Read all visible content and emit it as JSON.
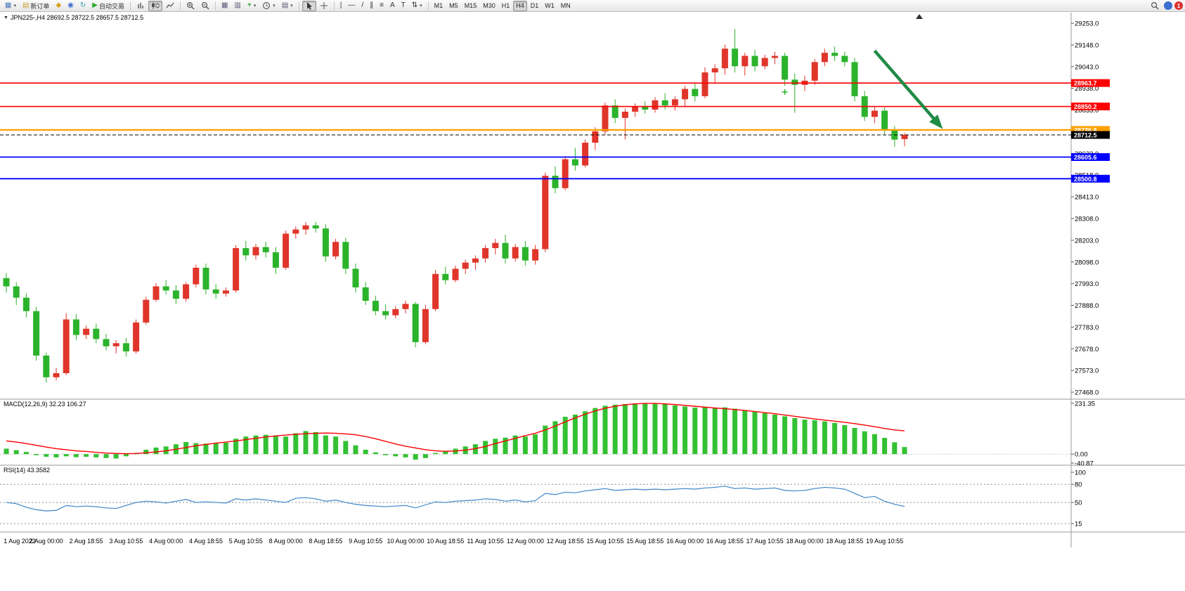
{
  "toolbar": {
    "new_order_label": "新订单",
    "auto_trading_label": "自动交易",
    "timeframes": [
      "M1",
      "M5",
      "M15",
      "M30",
      "H1",
      "H4",
      "D1",
      "W1",
      "MN"
    ],
    "active_timeframe": "H4",
    "badge_count": "1"
  },
  "chart": {
    "title": "JPN225-,H4 28692.5 28722.5 28657.5 28712.5",
    "symbol": "JPN225-",
    "period": "H4",
    "open": "28692.5",
    "high": "28722.5",
    "low": "28657.5",
    "close": "28712.5"
  },
  "chart_data": [
    {
      "type": "candlestick",
      "name": "JPN225- H4 main chart",
      "up_color": "#e0352b",
      "down_color": "#2bb32b",
      "ylim": [
        27441,
        29277
      ],
      "y_tick_labels": [
        "29253.0",
        "29148.0",
        "29043.0",
        "28938.0",
        "28833.0",
        "28728.0",
        "28623.0",
        "28518.0",
        "28413.0",
        "28308.0",
        "28203.0",
        "28098.0",
        "27993.0",
        "27888.0",
        "27783.0",
        "27678.0",
        "27573.0",
        "27468.0"
      ],
      "x_tick_step": 4,
      "x_tick_labels": [
        "1 Aug 2022",
        "2 Aug 00:00",
        "2 Aug 18:55",
        "3 Aug 10:55",
        "4 Aug 00:00",
        "4 Aug 18:55",
        "5 Aug 10:55",
        "8 Aug 00:00",
        "8 Aug 18:55",
        "9 Aug 10:55",
        "10 Aug 00:00",
        "10 Aug 18:55",
        "11 Aug 10:55",
        "12 Aug 00:00",
        "12 Aug 18:55",
        "15 Aug 10:55",
        "15 Aug 18:55",
        "16 Aug 00:00",
        "16 Aug 18:55",
        "17 Aug 10:55",
        "18 Aug 00:00",
        "18 Aug 18:55",
        "19 Aug 10:55"
      ],
      "ohlc": [
        [
          28020,
          28045,
          27950,
          27980
        ],
        [
          27980,
          28000,
          27890,
          27925
        ],
        [
          27925,
          27945,
          27830,
          27860
        ],
        [
          27860,
          27880,
          27620,
          27645
        ],
        [
          27645,
          27660,
          27515,
          27540
        ],
        [
          27540,
          27585,
          27525,
          27560
        ],
        [
          27560,
          27850,
          27550,
          27820
        ],
        [
          27820,
          27845,
          27720,
          27745
        ],
        [
          27745,
          27790,
          27725,
          27775
        ],
        [
          27775,
          27800,
          27705,
          27725
        ],
        [
          27725,
          27750,
          27670,
          27690
        ],
        [
          27690,
          27720,
          27655,
          27705
        ],
        [
          27705,
          27730,
          27640,
          27665
        ],
        [
          27665,
          27820,
          27655,
          27805
        ],
        [
          27805,
          27930,
          27795,
          27915
        ],
        [
          27915,
          27995,
          27905,
          27980
        ],
        [
          27980,
          28010,
          27940,
          27960
        ],
        [
          27960,
          27985,
          27895,
          27920
        ],
        [
          27920,
          28000,
          27905,
          27990
        ],
        [
          27990,
          28085,
          27975,
          28070
        ],
        [
          28070,
          28090,
          27940,
          27965
        ],
        [
          27965,
          27990,
          27920,
          27945
        ],
        [
          27945,
          27975,
          27930,
          27960
        ],
        [
          27960,
          28180,
          27950,
          28165
        ],
        [
          28165,
          28200,
          28105,
          28130
        ],
        [
          28130,
          28185,
          28110,
          28170
        ],
        [
          28170,
          28195,
          28120,
          28145
        ],
        [
          28145,
          28170,
          28040,
          28070
        ],
        [
          28070,
          28250,
          28060,
          28235
        ],
        [
          28235,
          28270,
          28210,
          28255
        ],
        [
          28255,
          28290,
          28230,
          28275
        ],
        [
          28275,
          28292,
          28240,
          28260
        ],
        [
          28260,
          28280,
          28100,
          28125
        ],
        [
          28125,
          28210,
          28110,
          28195
        ],
        [
          28195,
          28215,
          28040,
          28065
        ],
        [
          28065,
          28090,
          27950,
          27975
        ],
        [
          27975,
          28000,
          27890,
          27910
        ],
        [
          27910,
          27935,
          27840,
          27860
        ],
        [
          27860,
          27895,
          27820,
          27840
        ],
        [
          27840,
          27885,
          27825,
          27870
        ],
        [
          27870,
          27910,
          27850,
          27895
        ],
        [
          27895,
          27905,
          27685,
          27710
        ],
        [
          27710,
          27890,
          27700,
          27870
        ],
        [
          27870,
          28060,
          27860,
          28040
        ],
        [
          28040,
          28075,
          27990,
          28010
        ],
        [
          28010,
          28080,
          28000,
          28065
        ],
        [
          28065,
          28110,
          28040,
          28095
        ],
        [
          28095,
          28130,
          28060,
          28115
        ],
        [
          28115,
          28180,
          28095,
          28165
        ],
        [
          28165,
          28210,
          28135,
          28190
        ],
        [
          28190,
          28230,
          28090,
          28115
        ],
        [
          28115,
          28185,
          28100,
          28170
        ],
        [
          28170,
          28200,
          28080,
          28105
        ],
        [
          28105,
          28180,
          28085,
          28160
        ],
        [
          28160,
          28530,
          28145,
          28515
        ],
        [
          28515,
          28560,
          28430,
          28455
        ],
        [
          28455,
          28610,
          28445,
          28595
        ],
        [
          28595,
          28650,
          28540,
          28565
        ],
        [
          28565,
          28690,
          28555,
          28675
        ],
        [
          28675,
          28750,
          28640,
          28730
        ],
        [
          28730,
          28870,
          28715,
          28855
        ],
        [
          28855,
          28885,
          28770,
          28795
        ],
        [
          28795,
          28840,
          28690,
          28825
        ],
        [
          28825,
          28865,
          28800,
          28850
        ],
        [
          28850,
          28875,
          28815,
          28835
        ],
        [
          28835,
          28895,
          28820,
          28880
        ],
        [
          28880,
          28915,
          28835,
          28855
        ],
        [
          28855,
          28900,
          28830,
          28885
        ],
        [
          28885,
          28950,
          28850,
          28935
        ],
        [
          28935,
          28965,
          28875,
          28900
        ],
        [
          28900,
          29040,
          28890,
          29015
        ],
        [
          29015,
          29055,
          28960,
          29035
        ],
        [
          29035,
          29150,
          29005,
          29130
        ],
        [
          29130,
          29225,
          29015,
          29045
        ],
        [
          29045,
          29110,
          29000,
          29095
        ],
        [
          29095,
          29125,
          29020,
          29045
        ],
        [
          29045,
          29100,
          29030,
          29085
        ],
        [
          29085,
          29115,
          29055,
          29095
        ],
        [
          29095,
          29110,
          28950,
          28980
        ],
        [
          28980,
          29010,
          28820,
          28955
        ],
        [
          28955,
          29000,
          28925,
          28975
        ],
        [
          28975,
          29080,
          28955,
          29065
        ],
        [
          29065,
          29130,
          29045,
          29110
        ],
        [
          29110,
          29140,
          29070,
          29095
        ],
        [
          29095,
          29115,
          29045,
          29065
        ],
        [
          29065,
          29085,
          28875,
          28900
        ],
        [
          28900,
          28925,
          28780,
          28800
        ],
        [
          28800,
          28850,
          28770,
          28830
        ],
        [
          28830,
          28845,
          28715,
          28740
        ],
        [
          28740,
          28755,
          28655,
          28690
        ],
        [
          28692.5,
          28722.5,
          28657.5,
          28712.5
        ]
      ],
      "hlines": [
        {
          "price": 28963.7,
          "label": "28963.7",
          "color": "#ff0000",
          "width": 1.6
        },
        {
          "price": 28850.2,
          "label": "28850.2",
          "color": "#ff0000",
          "width": 1.6
        },
        {
          "price": 28736.8,
          "label": "28736.8",
          "color": "#ffa000",
          "width": 2.2
        },
        {
          "price": 28712.5,
          "label": "28712.5",
          "color": "#000000",
          "width": 1,
          "dashed": true
        },
        {
          "price": 28605.6,
          "label": "28605.6",
          "color": "#0000ff",
          "width": 1.8
        },
        {
          "price": 28500.8,
          "label": "28500.8",
          "color": "#0000ff",
          "width": 1.8
        }
      ],
      "arrow": {
        "i1": 87,
        "p1": 29120,
        "i2": 93.5,
        "p2": 28760,
        "color": "#1f8b45"
      },
      "marker": {
        "index": 78,
        "price": 28920,
        "color": "#2bb32b"
      }
    },
    {
      "type": "bar",
      "name": "MACD",
      "label": "MACD(12,26,9) 32.23 106.27",
      "scale_labels": [
        "231.35",
        "0.00",
        "-40.87"
      ],
      "ylim": [
        -40.87,
        231.35
      ],
      "histogram_color": "#33c133",
      "signal_color": "#ff0000",
      "histogram": [
        25,
        18,
        10,
        -5,
        -12,
        -15,
        -10,
        -14,
        -12,
        -15,
        -18,
        -20,
        -10,
        5,
        20,
        30,
        35,
        45,
        55,
        50,
        48,
        50,
        52,
        70,
        80,
        85,
        88,
        85,
        80,
        95,
        105,
        100,
        85,
        80,
        60,
        40,
        20,
        8,
        -5,
        -10,
        -15,
        -25,
        -18,
        5,
        15,
        25,
        35,
        45,
        60,
        70,
        75,
        85,
        80,
        90,
        130,
        150,
        170,
        180,
        195,
        210,
        220,
        225,
        228,
        230,
        231,
        230,
        228,
        222,
        217,
        212,
        214,
        212,
        213,
        207,
        200,
        193,
        187,
        180,
        172,
        164,
        157,
        154,
        149,
        142,
        132,
        119,
        104,
        91,
        74,
        54,
        32.23
      ],
      "signal": [
        60,
        55,
        48,
        40,
        32,
        25,
        20,
        15,
        12,
        8,
        5,
        3,
        2,
        3,
        6,
        10,
        15,
        22,
        30,
        38,
        44,
        50,
        55,
        60,
        66,
        72,
        78,
        83,
        87,
        90,
        93,
        95,
        96,
        95,
        92,
        88,
        80,
        70,
        58,
        46,
        36,
        28,
        20,
        15,
        13,
        14,
        18,
        25,
        35,
        48,
        60,
        72,
        84,
        95,
        110,
        128,
        147,
        165,
        182,
        197,
        209,
        218,
        225,
        229,
        231,
        231,
        229,
        226,
        222,
        218,
        214,
        210,
        207,
        203,
        199,
        194,
        189,
        184,
        178,
        172,
        166,
        160,
        155,
        150,
        145,
        139,
        132,
        125,
        117,
        110,
        106.27
      ]
    },
    {
      "type": "line",
      "name": "RSI",
      "label": "RSI(14) 43.3582",
      "scale_labels": [
        "100",
        "80",
        "50",
        "15"
      ],
      "levels": [
        80,
        50,
        15
      ],
      "ylim": [
        0,
        100
      ],
      "line_color": "#4d8fcc",
      "values": [
        50,
        48,
        42,
        38,
        36,
        37,
        45,
        43,
        44,
        43,
        41,
        40,
        45,
        50,
        52,
        51,
        49,
        52,
        55,
        50,
        51,
        50,
        49,
        56,
        54,
        56,
        54,
        52,
        50,
        57,
        58,
        56,
        52,
        54,
        50,
        47,
        45,
        44,
        43,
        44,
        45,
        41,
        46,
        51,
        50,
        52,
        53,
        54,
        56,
        55,
        52,
        54,
        51,
        53,
        65,
        63,
        67,
        66,
        69,
        71,
        73,
        70,
        71,
        72,
        71,
        72,
        71,
        72,
        73,
        72,
        74,
        75,
        77,
        73,
        74,
        72,
        73,
        74,
        70,
        69,
        70,
        73,
        75,
        74,
        72,
        65,
        58,
        60,
        52,
        47,
        43.36
      ]
    }
  ]
}
